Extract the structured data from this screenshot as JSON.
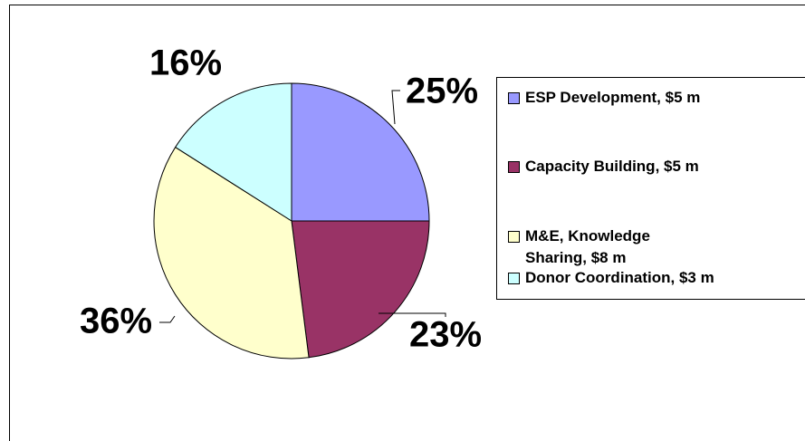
{
  "chart_data": {
    "type": "pie",
    "categories": [
      "ESP Development, $5 m",
      "Capacity Building, $5 m",
      "M&E, Knowledge Sharing, $8 m",
      "Donor Coordination, $3 m"
    ],
    "values": [
      25,
      23,
      36,
      16
    ],
    "value_labels": [
      "25%",
      "23%",
      "36%",
      "16%"
    ],
    "colors": [
      "#9999ff",
      "#993366",
      "#ffffcc",
      "#ccffff"
    ],
    "legend": "right"
  }
}
